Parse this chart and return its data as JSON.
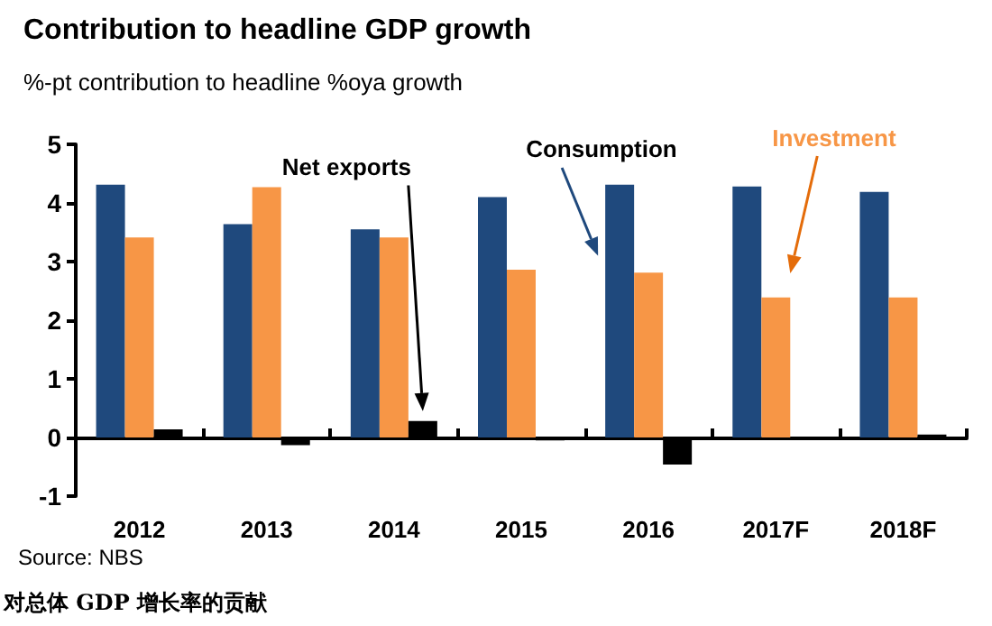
{
  "chart_data": {
    "type": "bar",
    "title": "Contribution to headline GDP growth",
    "subtitle": "%-pt contribution to headline %oya growth",
    "categories": [
      "2012",
      "2013",
      "2014",
      "2015",
      "2016",
      "2017F",
      "2018F"
    ],
    "series": [
      {
        "name": "Consumption",
        "color": "#1f497d",
        "values": [
          4.31,
          3.64,
          3.55,
          4.1,
          4.31,
          4.28,
          4.19
        ]
      },
      {
        "name": "Investment",
        "color": "#f79646",
        "values": [
          3.41,
          4.27,
          3.41,
          2.86,
          2.81,
          2.39,
          2.39
        ]
      },
      {
        "name": "Net exports",
        "color": "#000000",
        "values": [
          0.14,
          -0.13,
          0.28,
          -0.05,
          -0.46,
          0,
          0.05
        ]
      }
    ],
    "ylim": [
      -1,
      5
    ],
    "yticks": [
      -1,
      0,
      1,
      2,
      3,
      4,
      5
    ],
    "legend": false,
    "annotations": [
      "Source: NBS",
      "对总体 GDP 增长率的贡献"
    ]
  }
}
